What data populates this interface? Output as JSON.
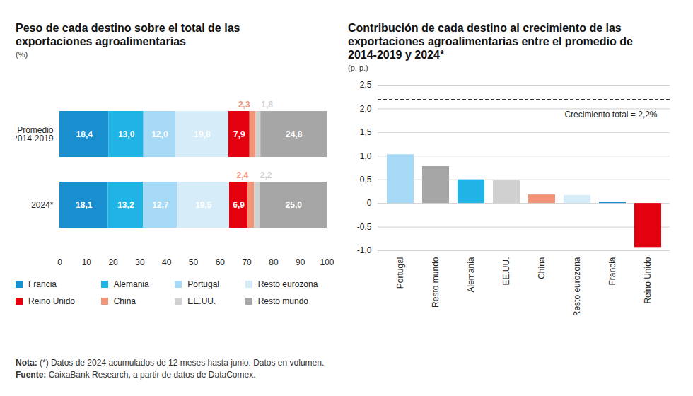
{
  "chart_data": [
    {
      "type": "bar",
      "title": "Peso de cada destino sobre el total de las exportaciones agroalimentarias",
      "subtitle": "(%)",
      "orientation": "horizontal",
      "stacked": true,
      "data_labels": true,
      "grid": false,
      "legend": "bottom",
      "categories": [
        "Promedio 2014-2019",
        "2024*"
      ],
      "series": [
        {
          "name": "Francia",
          "color": "#1a8fd0",
          "values": [
            18.4,
            18.1
          ],
          "value_labels": [
            "18,4",
            "18,1"
          ]
        },
        {
          "name": "Alemania",
          "color": "#1fb3e6",
          "values": [
            13.0,
            13.2
          ],
          "value_labels": [
            "13,0",
            "13,2"
          ]
        },
        {
          "name": "Portugal",
          "color": "#a5d9f5",
          "values": [
            12.0,
            12.7
          ],
          "value_labels": [
            "12,0",
            "12,7"
          ]
        },
        {
          "name": "Resto eurozona",
          "color": "#d6ecf9",
          "values": [
            19.8,
            19.5
          ],
          "value_labels": [
            "19,8",
            "19,5"
          ]
        },
        {
          "name": "Reino Unido",
          "color": "#e3000f",
          "values": [
            7.9,
            6.9
          ],
          "value_labels": [
            "7,9",
            "6,9"
          ]
        },
        {
          "name": "China",
          "color": "#f29477",
          "values": [
            2.3,
            2.4
          ],
          "value_labels": [
            "2,3",
            "2,4"
          ]
        },
        {
          "name": "EE.UU.",
          "color": "#d0d0d0",
          "values": [
            1.8,
            2.2
          ],
          "value_labels": [
            "1,8",
            "2,2"
          ]
        },
        {
          "name": "Resto mundo",
          "color": "#a6a6a6",
          "values": [
            24.8,
            25.0
          ],
          "value_labels": [
            "24,8",
            "25,0"
          ]
        }
      ],
      "xlim": [
        0,
        100
      ],
      "xticks": [
        0,
        10,
        20,
        30,
        40,
        50,
        60,
        70,
        80,
        90,
        100
      ]
    },
    {
      "type": "bar",
      "title": "Contribución de cada destino al crecimiento de las exportaciones agroalimentarias entre el promedio de 2014-2019 y 2024*",
      "subtitle": "(p. p.)",
      "grid": true,
      "categories": [
        "Portugal",
        "Resto mundo",
        "Alemania",
        "EE.UU.",
        "China",
        "Resto eurozona",
        "Francia",
        "Reino Unido"
      ],
      "values": [
        1.03,
        0.78,
        0.5,
        0.48,
        0.18,
        0.17,
        0.03,
        -0.93
      ],
      "colors": [
        "#a5d9f5",
        "#a6a6a6",
        "#1fb3e6",
        "#d0d0d0",
        "#f29477",
        "#d6ecf9",
        "#1a8fd0",
        "#e3000f"
      ],
      "ylim": [
        -1.0,
        2.5
      ],
      "yticks": [
        {
          "value": 2.5,
          "label": "2,5"
        },
        {
          "value": 2.0,
          "label": "2,0"
        },
        {
          "value": 1.5,
          "label": "1,5"
        },
        {
          "value": 1.0,
          "label": "1,0"
        },
        {
          "value": 0.5,
          "label": "0,5"
        },
        0,
        {
          "value": -0.5,
          "label": "-0,5"
        },
        {
          "value": -1.0,
          "label": "-1,0"
        }
      ],
      "reference_lines": [
        {
          "y": 2.2,
          "label": "Crecimiento total = 2,2%",
          "line_style": "dashed"
        }
      ]
    }
  ],
  "notes": [
    {
      "label": "Nota:",
      "text": "(*) Datos de 2024 acumulados de 12 meses hasta junio. Datos en volumen."
    },
    {
      "label": "Fuente:",
      "text": "CaixaBank Research, a partir de datos de DataComex."
    }
  ]
}
